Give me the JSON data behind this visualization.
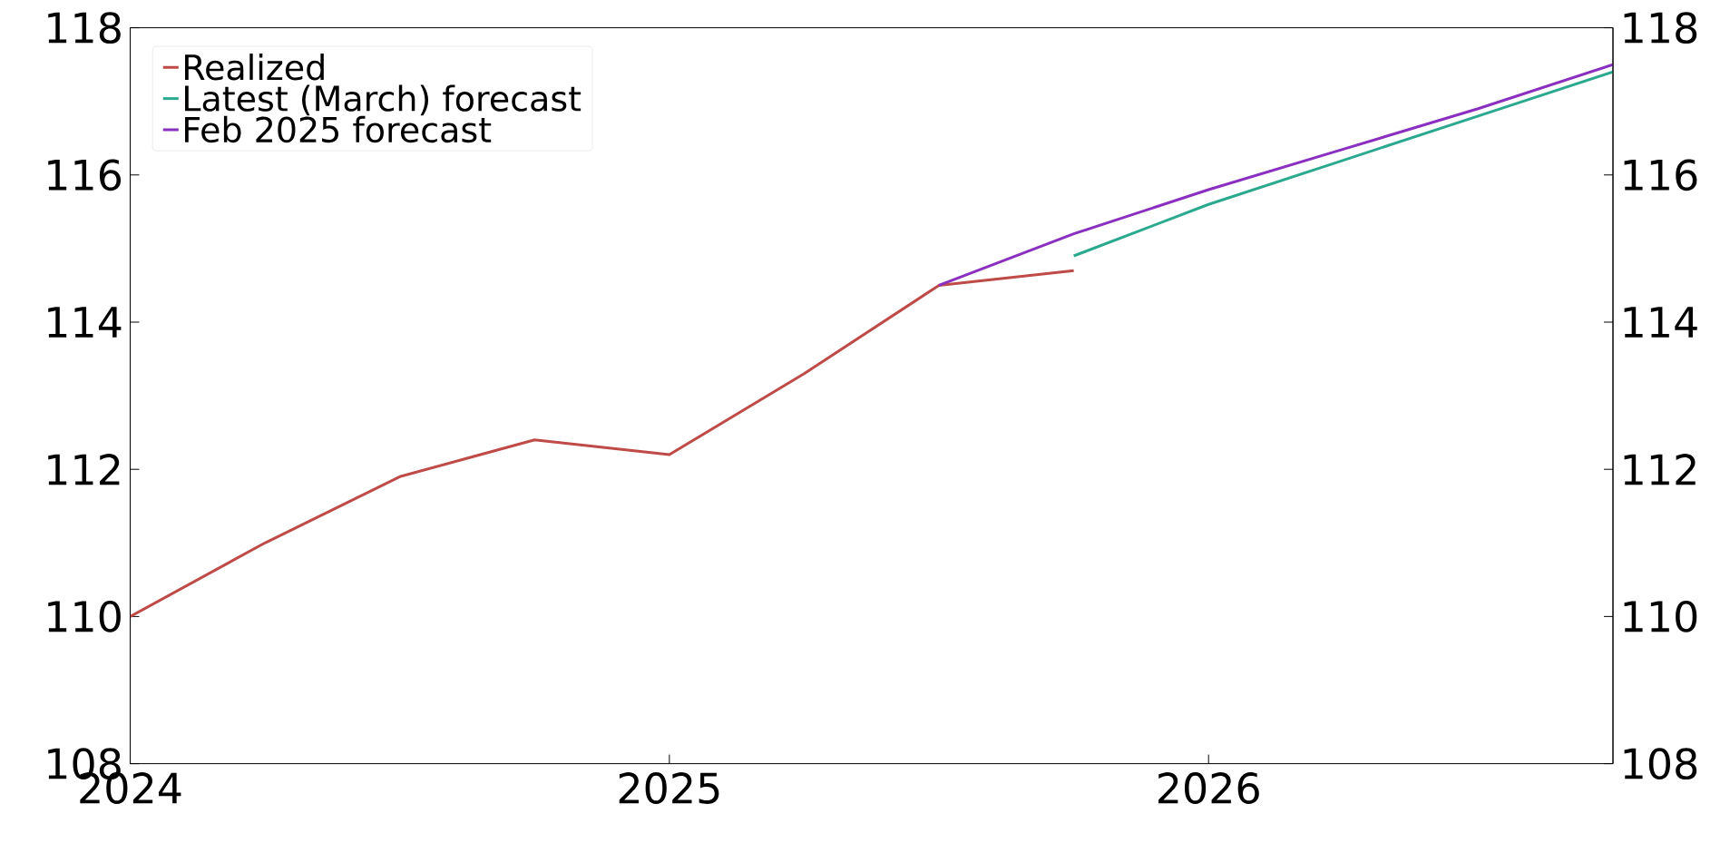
{
  "chart_data": {
    "type": "line",
    "x": [
      2024,
      2024.25,
      2024.5,
      2024.75,
      2025,
      2025.25,
      2025.5,
      2025.75
    ],
    "series": [
      {
        "name": "Realized",
        "color": "#bf4b48",
        "values": [
          110.0,
          111.0,
          111.9,
          112.4,
          112.2,
          113.3,
          114.5,
          114.7
        ]
      },
      {
        "name": "Latest (March) forecast",
        "color": "#2aa98f",
        "x": [
          2025.75,
          2026,
          2026.25,
          2026.5,
          2026.75
        ],
        "values": [
          114.9,
          115.6,
          116.2,
          116.8,
          117.4
        ]
      },
      {
        "name": "Feb 2025 forecast",
        "color": "#8a2fbf",
        "x": [
          2025.5,
          2025.75,
          2026,
          2026.25,
          2026.5,
          2026.75
        ],
        "values": [
          114.5,
          115.2,
          115.8,
          116.35,
          116.9,
          117.5
        ]
      }
    ],
    "xlim": [
      2024,
      2026.75
    ],
    "xticks": [
      2024,
      2025,
      2026
    ],
    "ylim": [
      108,
      118
    ],
    "yticks": [
      108,
      110,
      112,
      114,
      116,
      118
    ],
    "y2lim": [
      108,
      118
    ],
    "y2ticks": [
      108,
      110,
      112,
      114,
      116,
      118
    ],
    "legend": "top left",
    "grid": false,
    "marker": "none",
    "line_style": "solid"
  }
}
